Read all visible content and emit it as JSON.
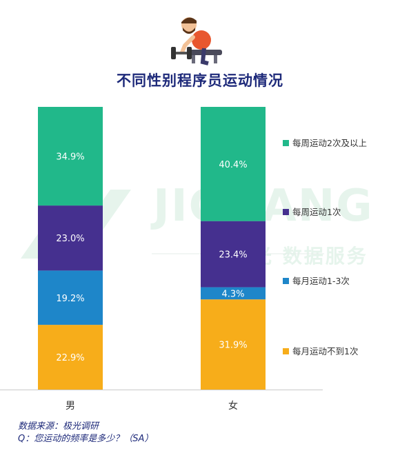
{
  "watermark": {
    "text": "JIGUANG",
    "sub": "极光 数据服务"
  },
  "colors": {
    "title": "#1e2a7a",
    "green": "#21b88a",
    "purple": "#45308f",
    "blue": "#1e86c9",
    "yellow": "#f7ad1a"
  },
  "icon": "weightlifter-icon",
  "chart_data": {
    "type": "bar",
    "stacked": true,
    "title": "不同性别程序员运动情况",
    "categories": [
      "男",
      "女"
    ],
    "series": [
      {
        "name": "每月运动不到1次",
        "color": "#f7ad1a",
        "values": [
          22.9,
          31.9
        ],
        "labels": [
          "22.9%",
          "31.9%"
        ]
      },
      {
        "name": "每月运动1-3次",
        "color": "#1e86c9",
        "values": [
          19.2,
          4.3
        ],
        "labels": [
          "19.2%",
          "4.3%"
        ]
      },
      {
        "name": "每周运动1次",
        "color": "#45308f",
        "values": [
          23.0,
          23.4
        ],
        "labels": [
          "23.0%",
          "23.4%"
        ]
      },
      {
        "name": "每周运动2次及以上",
        "color": "#21b88a",
        "values": [
          34.9,
          40.4
        ],
        "labels": [
          "34.9%",
          "40.4%"
        ]
      }
    ],
    "ylim": [
      0,
      100
    ],
    "legend_position": "right",
    "legend_order": [
      "每周运动2次及以上",
      "每周运动1次",
      "每月运动1-3次",
      "每月运动不到1次"
    ]
  },
  "footer": {
    "source": "数据来源：极光调研",
    "question": "Q：您运动的频率是多少？（SA）"
  }
}
